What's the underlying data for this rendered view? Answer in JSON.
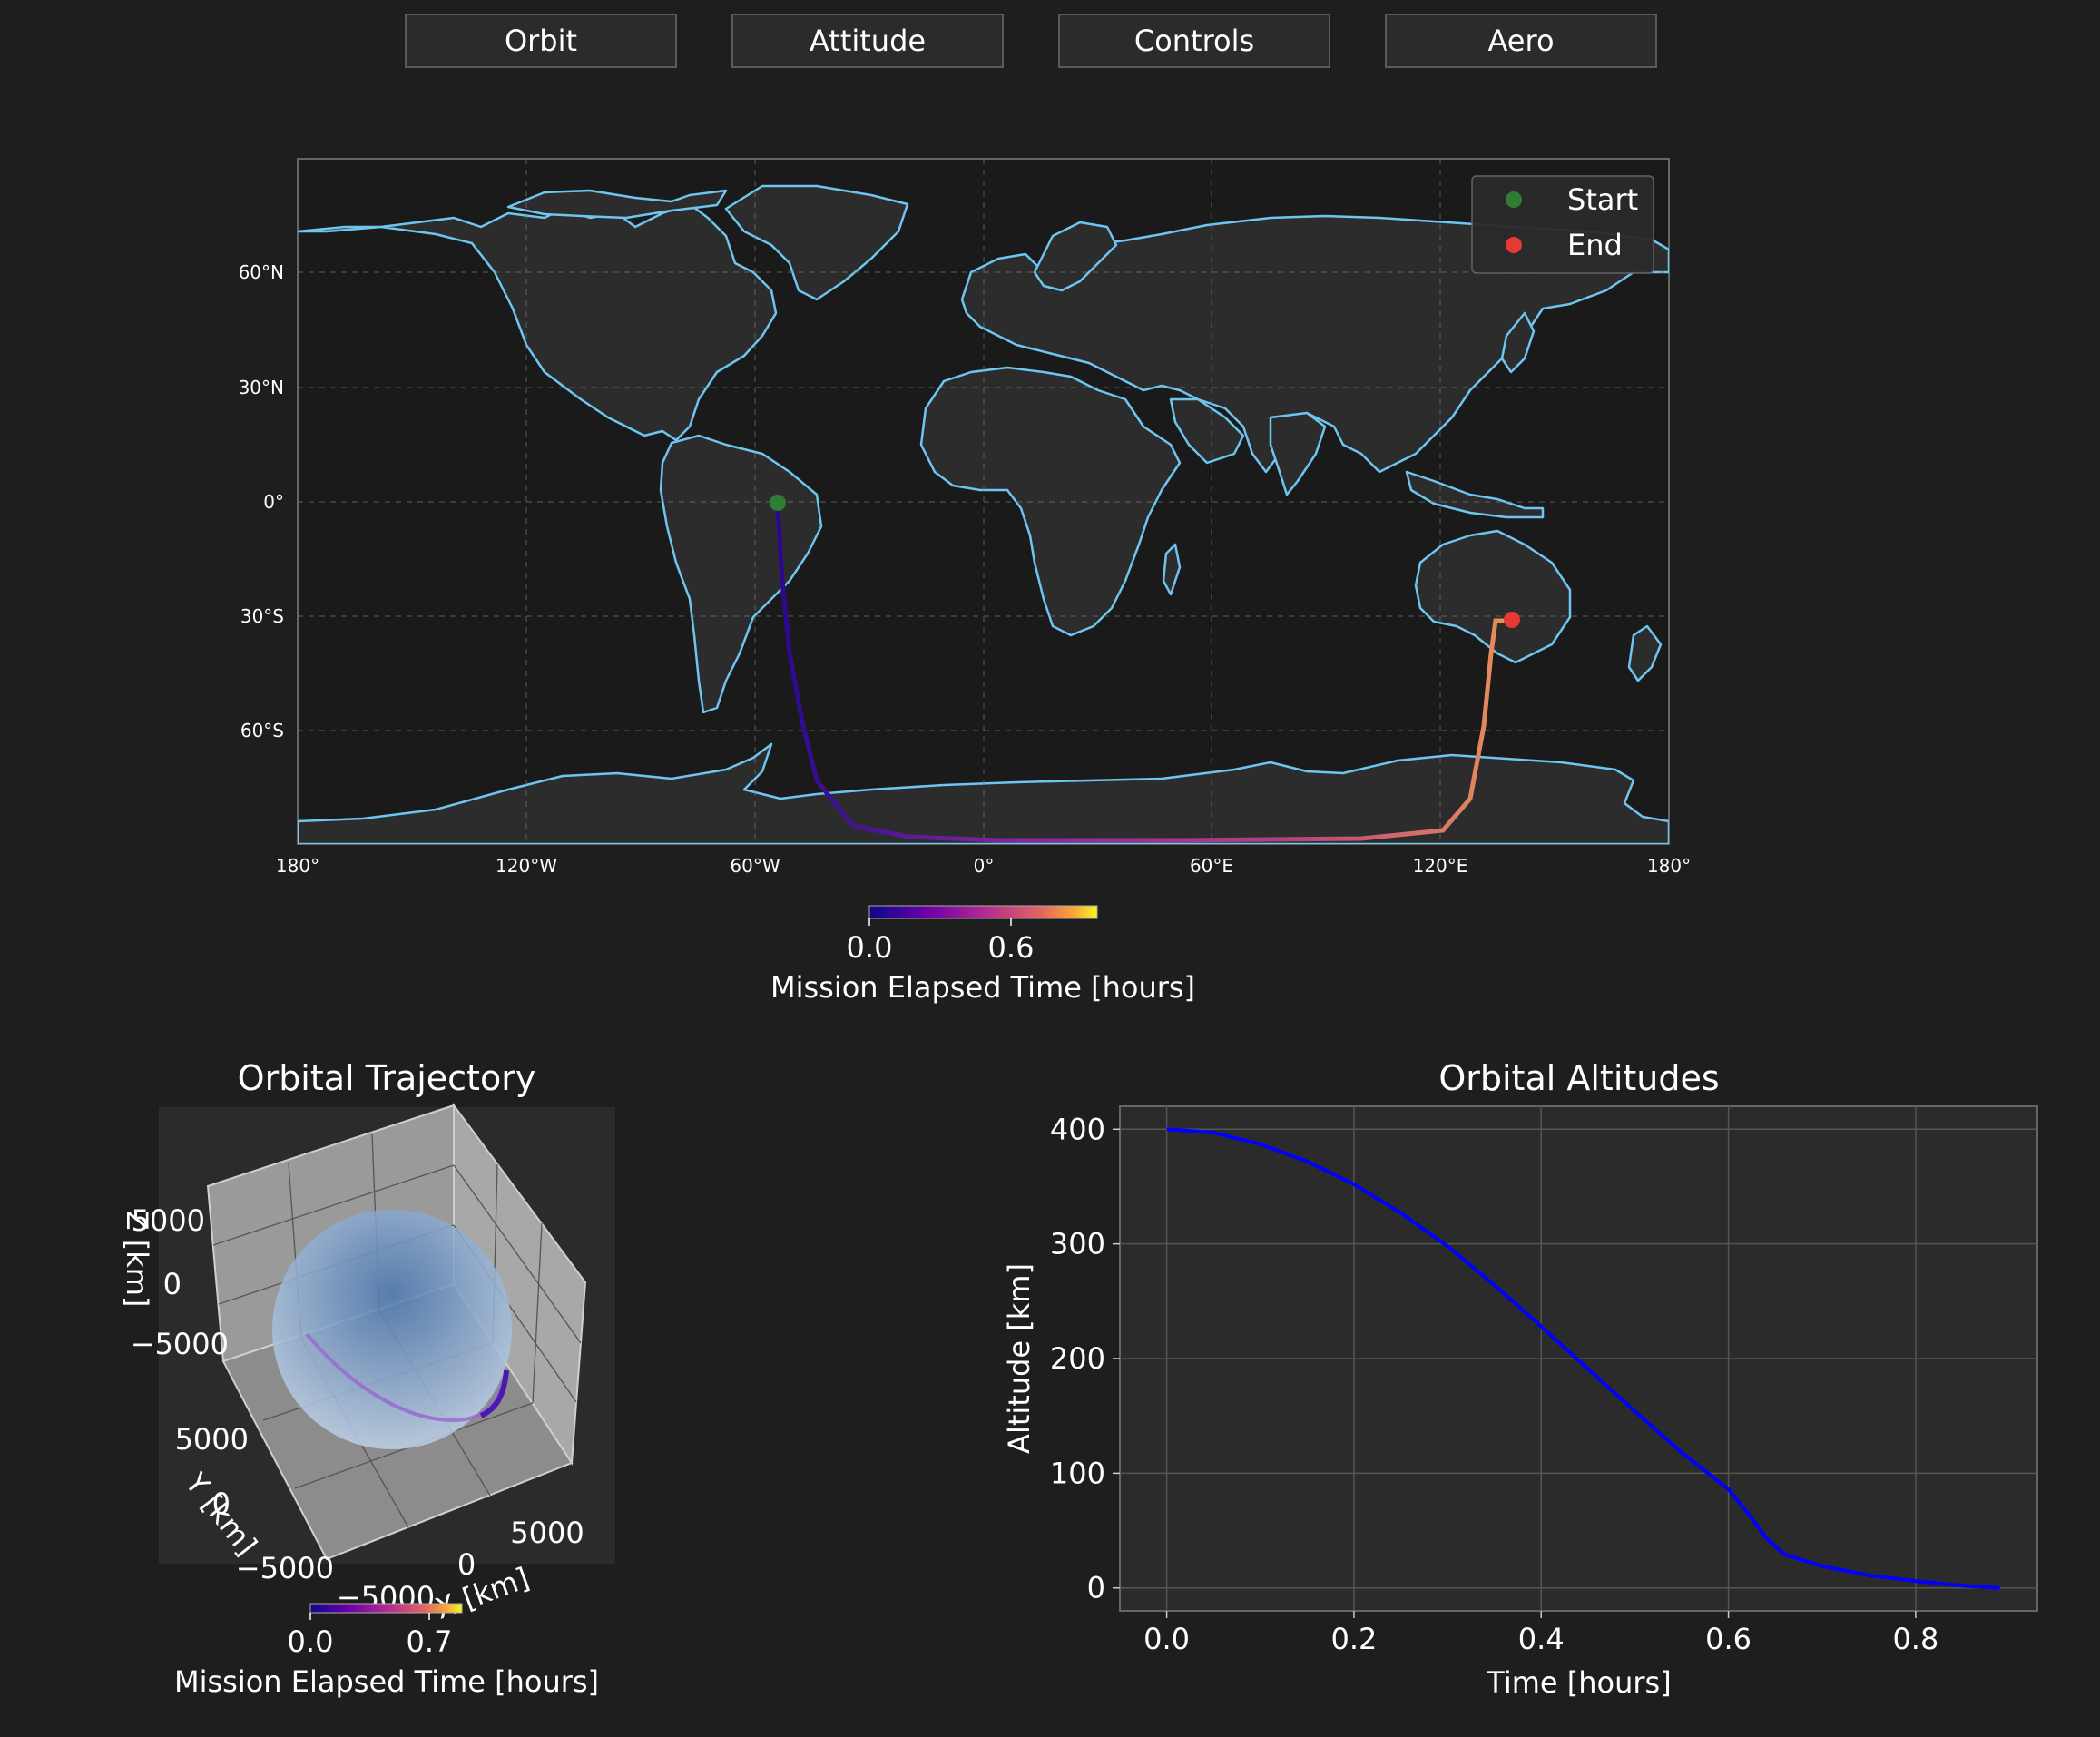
{
  "tabs": [
    {
      "label": "Orbit"
    },
    {
      "label": "Attitude"
    },
    {
      "label": "Controls"
    },
    {
      "label": "Aero"
    }
  ],
  "colors": {
    "background": "#1e1e1e",
    "panel": "#2b2b2b",
    "coastline": "#6ec6f0",
    "land": "#2e2e2e",
    "start_marker": "#2e7d32",
    "end_marker": "#e53935",
    "altitude_line": "#0000ff"
  },
  "ground_track": {
    "lat_ticks": [
      "60°N",
      "30°N",
      "0°",
      "30°S",
      "60°S"
    ],
    "lon_ticks": [
      "180°",
      "120°W",
      "60°W",
      "0°",
      "60°E",
      "120°E",
      "180°"
    ],
    "legend": {
      "start": "Start",
      "end": "End"
    },
    "start": {
      "lon": -54,
      "lat": 0
    },
    "end": {
      "lon": 139,
      "lat": -31
    },
    "colorbar": {
      "label": "Mission Elapsed Time [hours]",
      "ticks": [
        "0.0",
        "0.6"
      ]
    }
  },
  "trajectory3d": {
    "title": "Orbital Trajectory",
    "zlabel": "Z [km]",
    "ylabel": "Y [km]",
    "xlabel": "X [km]",
    "z_ticks": [
      "5000",
      "0",
      "−5000"
    ],
    "y_ticks": [
      "5000",
      "0",
      "−5000"
    ],
    "x_ticks": [
      "5000",
      "0",
      "−5000"
    ],
    "colorbar": {
      "label": "Mission Elapsed Time [hours]",
      "ticks": [
        "0.0",
        "0.7"
      ]
    }
  },
  "chart_data": {
    "type": "line",
    "title": "Orbital Altitudes",
    "xlabel": "Time [hours]",
    "ylabel": "Altitude [km]",
    "xlim": [
      -0.05,
      0.93
    ],
    "ylim": [
      -20,
      420
    ],
    "x_ticks": [
      "0.0",
      "0.2",
      "0.4",
      "0.6",
      "0.8"
    ],
    "y_ticks": [
      "0",
      "100",
      "200",
      "300",
      "400"
    ],
    "grid": true,
    "x": [
      0.0,
      0.05,
      0.1,
      0.15,
      0.2,
      0.25,
      0.3,
      0.35,
      0.4,
      0.45,
      0.5,
      0.55,
      0.6,
      0.62,
      0.64,
      0.66,
      0.7,
      0.75,
      0.8,
      0.85,
      0.89
    ],
    "y": [
      400,
      397,
      387,
      372,
      352,
      327,
      298,
      264,
      228,
      191,
      154,
      118,
      86,
      66,
      44,
      29,
      19,
      11,
      6,
      2,
      0
    ]
  }
}
